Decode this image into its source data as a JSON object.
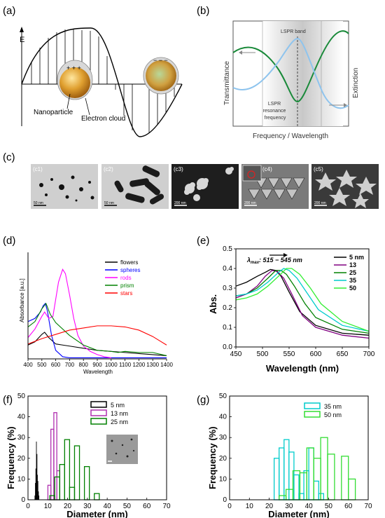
{
  "panels": {
    "a": {
      "label": "(a)",
      "e_label": "E",
      "nanoparticle_label": "Nanoparticle",
      "electron_cloud_label": "Electron cloud"
    },
    "b": {
      "label": "(b)",
      "band_label": "LSPR band",
      "resonance_label": [
        "LSPR",
        "resonance",
        "frequency"
      ],
      "ylabel_left": "Transmittance",
      "ylabel_right": "Extinction",
      "xlabel": "Frequency / Wavelength",
      "colors": {
        "transmittance": "#1a8a3a",
        "extinction": "#8ec4ee"
      }
    },
    "c": {
      "label": "(c)",
      "images": [
        {
          "tag": "(c1)",
          "scale": "50 nm",
          "kind": "spheres",
          "bg": "#cfcfcf"
        },
        {
          "tag": "(c2)",
          "scale": "50 nm",
          "kind": "rods",
          "bg": "#cfcfcf"
        },
        {
          "tag": "(c3)",
          "scale": "200 nm",
          "kind": "flowers",
          "bg": "#1e1e1e"
        },
        {
          "tag": "(c4)",
          "scale": "200 nm",
          "kind": "prisms",
          "bg": "#7a7a7a"
        },
        {
          "tag": "(c5)",
          "scale": "200 nm",
          "kind": "stars",
          "bg": "#3a3a3a"
        }
      ]
    },
    "d": {
      "label": "(d)"
    },
    "e": {
      "label": "(e)",
      "annotation": "λ",
      "annotation_sub": "max",
      "annotation_range": ": 515 − 545 nm"
    },
    "f": {
      "label": "(f)"
    },
    "g": {
      "label": "(g)"
    }
  },
  "chart_data": [
    {
      "panel": "d",
      "type": "line",
      "title": "",
      "xlabel": "Wavelength",
      "ylabel": "Absorbance [a.u.]",
      "xlim": [
        400,
        1400
      ],
      "xticks": [
        400,
        500,
        600,
        700,
        800,
        900,
        1000,
        1100,
        1200,
        1300,
        1400
      ],
      "ylim": [
        0,
        1
      ],
      "legend_position": "top-right",
      "series": [
        {
          "name": "flowers",
          "color": "#000000",
          "x": [
            400,
            450,
            500,
            520,
            550,
            600,
            650,
            700,
            800,
            900,
            1000,
            1100,
            1200,
            1300,
            1400
          ],
          "y": [
            0.13,
            0.16,
            0.23,
            0.25,
            0.2,
            0.14,
            0.13,
            0.12,
            0.1,
            0.08,
            0.07,
            0.06,
            0.05,
            0.04,
            0.03
          ]
        },
        {
          "name": "spheres",
          "color": "#0000ff",
          "x": [
            400,
            450,
            490,
            510,
            525,
            540,
            570,
            600,
            650,
            700,
            800,
            1000,
            1200,
            1400
          ],
          "y": [
            0.35,
            0.38,
            0.44,
            0.5,
            0.52,
            0.45,
            0.22,
            0.08,
            0.02,
            0.01,
            0.01,
            0.01,
            0.01,
            0.01
          ]
        },
        {
          "name": "rods",
          "color": "#ff00ff",
          "x": [
            400,
            450,
            500,
            520,
            550,
            580,
            620,
            650,
            670,
            700,
            730,
            760,
            800,
            850,
            900,
            950,
            1000
          ],
          "y": [
            0.2,
            0.28,
            0.4,
            0.44,
            0.38,
            0.4,
            0.72,
            0.84,
            0.8,
            0.6,
            0.38,
            0.22,
            0.12,
            0.07,
            0.04,
            0.02,
            0.01
          ]
        },
        {
          "name": "prism",
          "color": "#008000",
          "x": [
            400,
            450,
            500,
            530,
            560,
            600,
            700,
            800,
            900,
            1000,
            1050,
            1100,
            1200,
            1300,
            1400
          ],
          "y": [
            0.3,
            0.35,
            0.47,
            0.52,
            0.42,
            0.34,
            0.22,
            0.13,
            0.08,
            0.07,
            0.06,
            0.07,
            0.06,
            0.06,
            0.03
          ]
        },
        {
          "name": "stars",
          "color": "#ff0000",
          "x": [
            400,
            500,
            600,
            700,
            800,
            900,
            1000,
            1100,
            1200,
            1300,
            1350,
            1400
          ],
          "y": [
            0.14,
            0.19,
            0.23,
            0.27,
            0.29,
            0.31,
            0.31,
            0.3,
            0.27,
            0.21,
            0.17,
            0.13
          ]
        }
      ]
    },
    {
      "panel": "e",
      "type": "line",
      "title": "",
      "xlabel": "Wavelength (nm)",
      "ylabel": "Abs.",
      "xlim": [
        450,
        700
      ],
      "xticks": [
        450,
        500,
        550,
        600,
        650,
        700
      ],
      "ylim": [
        0,
        0.5
      ],
      "yticks": [
        0.0,
        0.1,
        0.2,
        0.3,
        0.4,
        0.5
      ],
      "legend_position": "top-right",
      "series": [
        {
          "name": "5 nm",
          "color": "#000000",
          "x": [
            450,
            470,
            490,
            505,
            515,
            525,
            535,
            550,
            570,
            600,
            650,
            700
          ],
          "y": [
            0.31,
            0.33,
            0.36,
            0.38,
            0.395,
            0.39,
            0.36,
            0.28,
            0.18,
            0.11,
            0.07,
            0.06
          ]
        },
        {
          "name": "13",
          "color": "#800080",
          "x": [
            450,
            470,
            490,
            505,
            518,
            528,
            540,
            555,
            575,
            600,
            650,
            700
          ],
          "y": [
            0.25,
            0.27,
            0.31,
            0.36,
            0.39,
            0.385,
            0.35,
            0.27,
            0.16,
            0.1,
            0.06,
            0.045
          ]
        },
        {
          "name": "25",
          "color": "#008000",
          "x": [
            450,
            470,
            490,
            510,
            525,
            535,
            545,
            560,
            580,
            600,
            650,
            700
          ],
          "y": [
            0.26,
            0.27,
            0.3,
            0.35,
            0.39,
            0.39,
            0.37,
            0.31,
            0.22,
            0.15,
            0.09,
            0.07
          ]
        },
        {
          "name": "35",
          "color": "#00cccc",
          "x": [
            450,
            470,
            490,
            510,
            530,
            540,
            550,
            565,
            585,
            605,
            650,
            700
          ],
          "y": [
            0.26,
            0.27,
            0.29,
            0.33,
            0.38,
            0.4,
            0.39,
            0.35,
            0.27,
            0.19,
            0.11,
            0.08
          ]
        },
        {
          "name": "50",
          "color": "#33ee33",
          "x": [
            450,
            470,
            490,
            510,
            530,
            545,
            555,
            570,
            590,
            610,
            650,
            700
          ],
          "y": [
            0.24,
            0.25,
            0.27,
            0.31,
            0.36,
            0.4,
            0.4,
            0.37,
            0.3,
            0.22,
            0.13,
            0.08
          ]
        }
      ]
    },
    {
      "panel": "f",
      "type": "bar",
      "title": "",
      "xlabel": "Diameter (nm)",
      "ylabel": "Frequency (%)",
      "xlim": [
        0,
        70
      ],
      "xticks": [
        0,
        10,
        20,
        30,
        40,
        50,
        60,
        70
      ],
      "ylim": [
        0,
        50
      ],
      "yticks": [
        0,
        10,
        20,
        30,
        40,
        50
      ],
      "legend_position": "top-right",
      "series": [
        {
          "name": "5 nm",
          "color": "#000000",
          "fill": true,
          "binwidth": 0.25,
          "x": [
            3.5,
            3.75,
            4.0,
            4.25,
            4.5,
            4.75,
            5.0,
            5.25,
            5.5
          ],
          "y": [
            2,
            8,
            15,
            28,
            22,
            12,
            9,
            4,
            2
          ]
        },
        {
          "name": "13 nm",
          "color": "#b030b0",
          "binwidth": 1.5,
          "x": [
            10.8,
            12.3,
            13.8,
            15.3
          ],
          "y": [
            7,
            34,
            42,
            14
          ]
        },
        {
          "name": "25 nm",
          "color": "#008000",
          "binwidth": 2.5,
          "x": [
            12.25,
            14.75,
            17.25,
            19.75,
            22.25,
            24.75,
            27.25,
            29.75,
            32.25,
            34.75
          ],
          "y": [
            2,
            11,
            17,
            29,
            6,
            26,
            0,
            16,
            0,
            3
          ]
        }
      ]
    },
    {
      "panel": "g",
      "type": "bar",
      "title": "",
      "xlabel": "Diameter (nm)",
      "ylabel": "Frequency (%)",
      "xlim": [
        0,
        70
      ],
      "xticks": [
        0,
        10,
        20,
        30,
        40,
        50,
        60,
        70
      ],
      "ylim": [
        0,
        50
      ],
      "yticks": [
        0,
        10,
        20,
        30,
        40,
        50
      ],
      "legend_position": "top-center",
      "series": [
        {
          "name": "35 nm",
          "color": "#00cccc",
          "binwidth": 2.5,
          "x": [
            23.75,
            26.25,
            28.75,
            31.25,
            33.75,
            36.25,
            38.75,
            41.25,
            43.75,
            46.25
          ],
          "y": [
            20,
            25,
            29,
            23,
            12,
            3,
            14,
            25,
            9,
            3
          ]
        },
        {
          "name": "50 nm",
          "color": "#33dd33",
          "binwidth": 3.5,
          "x": [
            26.75,
            30.25,
            33.75,
            37.25,
            40.75,
            44.25,
            47.75,
            51.25,
            54.75,
            58.25,
            61.75
          ],
          "y": [
            2,
            5,
            14,
            13,
            25,
            20,
            30,
            22,
            0,
            21,
            10
          ]
        }
      ]
    }
  ]
}
